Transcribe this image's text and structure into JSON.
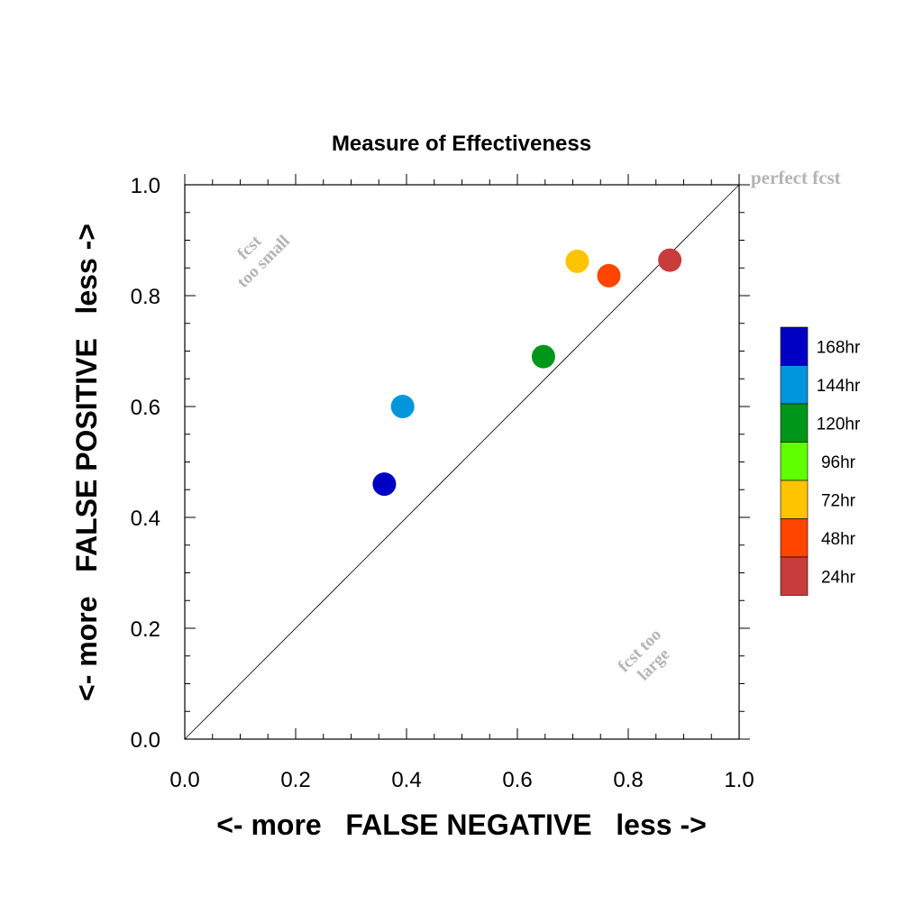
{
  "chart_data": {
    "type": "scatter",
    "title": "Measure of Effectiveness",
    "xlabel": "<- more   FALSE NEGATIVE   less ->",
    "ylabel": "<- more   FALSE POSITIVE   less ->",
    "xlim": [
      0,
      1
    ],
    "ylim": [
      0,
      1
    ],
    "x_ticks": [
      "0.0",
      "0.2",
      "0.4",
      "0.6",
      "0.8",
      "1.0"
    ],
    "y_ticks": [
      "0.0",
      "0.2",
      "0.4",
      "0.6",
      "0.8",
      "1.0"
    ],
    "grid": false,
    "diagonal_line": true,
    "legend_position": "right",
    "annotations": {
      "perfect": "perfect fcst",
      "small_line1": "fcst",
      "small_line2": "too small",
      "large_line1": "fcst too",
      "large_line2": "large"
    },
    "points": [
      {
        "label": "168hr",
        "x": 0.36,
        "y": 0.46,
        "color": "#0000c4"
      },
      {
        "label": "144hr",
        "x": 0.393,
        "y": 0.6,
        "color": "#0096dc"
      },
      {
        "label": "120hr",
        "x": 0.647,
        "y": 0.69,
        "color": "#009619"
      },
      {
        "label": "72hr",
        "x": 0.708,
        "y": 0.862,
        "color": "#ffc300"
      },
      {
        "label": "48hr",
        "x": 0.765,
        "y": 0.836,
        "color": "#ff4500"
      },
      {
        "label": "24hr",
        "x": 0.875,
        "y": 0.864,
        "color": "#c83c3c"
      }
    ],
    "legend": [
      {
        "label": "168hr",
        "color": "#0000c4"
      },
      {
        "label": "144hr",
        "color": "#0096dc"
      },
      {
        "label": "120hr",
        "color": "#009619"
      },
      {
        "label": "96hr",
        "color": "#5fff00"
      },
      {
        "label": "72hr",
        "color": "#ffc300"
      },
      {
        "label": "48hr",
        "color": "#ff4500"
      },
      {
        "label": "24hr",
        "color": "#c83c3c"
      }
    ]
  }
}
